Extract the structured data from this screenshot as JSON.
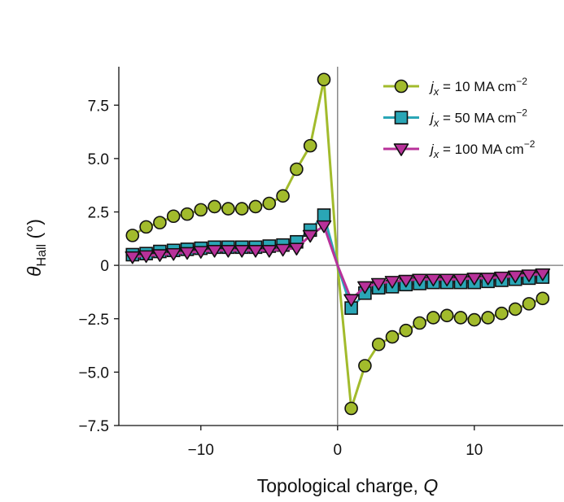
{
  "chart_data": {
    "type": "line",
    "title": "",
    "xlabel": "Topological charge, ",
    "xlabel_var": "Q",
    "ylabel_sym": "θ",
    "ylabel_sub": "Hall",
    "ylabel_unit": " (°)",
    "xlim": [
      -16,
      16.5
    ],
    "ylim": [
      -7.5,
      9.3
    ],
    "x_ticks": [
      -10,
      0,
      10
    ],
    "x_tick_labels": [
      "−10",
      "0",
      "10"
    ],
    "y_ticks": [
      7.5,
      5.0,
      2.5,
      0,
      -2.5,
      -5.0,
      -7.5
    ],
    "y_tick_labels": [
      "7.5",
      "5.0",
      "2.5",
      "0",
      "−2.5",
      "−5.0",
      "−7.5"
    ],
    "zero_lines": true,
    "legend_position": "top-right",
    "series": [
      {
        "name": "j_x = 10 MA cm^-2",
        "legend_var": "j",
        "legend_sub": "x",
        "legend_text": " = 10 MA cm",
        "legend_sup": "−2",
        "marker": "circle",
        "line_color": "#a2bb2c",
        "fill_color": "#a2bb2c",
        "x": [
          -15,
          -14,
          -13,
          -12,
          -11,
          -10,
          -9,
          -8,
          -7,
          -6,
          -5,
          -4,
          -3,
          -2,
          -1,
          0,
          1,
          2,
          3,
          4,
          5,
          6,
          7,
          8,
          9,
          10,
          11,
          12,
          13,
          14,
          15
        ],
        "y": [
          1.4,
          1.8,
          2.0,
          2.3,
          2.4,
          2.6,
          2.75,
          2.65,
          2.65,
          2.75,
          2.9,
          3.25,
          4.5,
          5.6,
          8.7,
          0,
          -6.7,
          -4.7,
          -3.7,
          -3.35,
          -3.05,
          -2.7,
          -2.45,
          -2.35,
          -2.45,
          -2.55,
          -2.45,
          -2.25,
          -2.05,
          -1.8,
          -1.55
        ]
      },
      {
        "name": "j_x = 50 MA cm^-2",
        "legend_var": "j",
        "legend_sub": "x",
        "legend_text": " = 50 MA cm",
        "legend_sup": "−2",
        "marker": "square",
        "line_color": "#2aa6b6",
        "fill_color": "#2aa6b6",
        "x": [
          -15,
          -14,
          -13,
          -12,
          -11,
          -10,
          -9,
          -8,
          -7,
          -6,
          -5,
          -4,
          -3,
          -2,
          -1,
          0,
          1,
          2,
          3,
          4,
          5,
          6,
          7,
          8,
          9,
          10,
          11,
          12,
          13,
          14,
          15
        ],
        "y": [
          0.5,
          0.55,
          0.65,
          0.7,
          0.75,
          0.8,
          0.85,
          0.85,
          0.85,
          0.85,
          0.9,
          0.95,
          1.1,
          1.65,
          2.35,
          0,
          -2.0,
          -1.3,
          -1.05,
          -1.0,
          -0.9,
          -0.85,
          -0.8,
          -0.8,
          -0.8,
          -0.8,
          -0.75,
          -0.7,
          -0.65,
          -0.6,
          -0.55
        ]
      },
      {
        "name": "j_x = 100 MA cm^-2",
        "legend_var": "j",
        "legend_sub": "x",
        "legend_text": " = 100 MA cm",
        "legend_sup": "−2",
        "marker": "triangle-down",
        "line_color": "#b8319a",
        "fill_color": "#b8319a",
        "x": [
          -15,
          -14,
          -13,
          -12,
          -11,
          -10,
          -9,
          -8,
          -7,
          -6,
          -5,
          -4,
          -3,
          -2,
          -1,
          0,
          1,
          2,
          3,
          4,
          5,
          6,
          7,
          8,
          9,
          10,
          11,
          12,
          13,
          14,
          15
        ],
        "y": [
          0.4,
          0.45,
          0.5,
          0.55,
          0.6,
          0.65,
          0.7,
          0.7,
          0.7,
          0.7,
          0.7,
          0.75,
          0.8,
          1.4,
          1.85,
          0,
          -1.6,
          -1.0,
          -0.85,
          -0.75,
          -0.7,
          -0.65,
          -0.65,
          -0.65,
          -0.65,
          -0.6,
          -0.6,
          -0.55,
          -0.5,
          -0.45,
          -0.4
        ]
      }
    ]
  }
}
